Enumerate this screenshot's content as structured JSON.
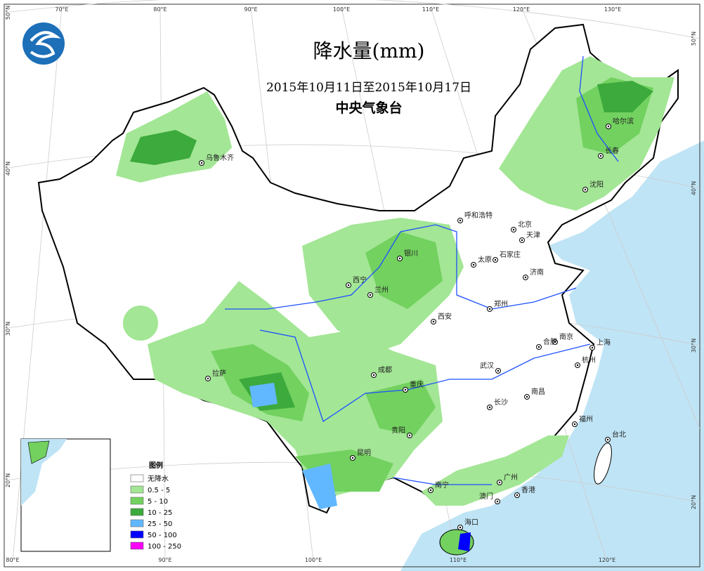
{
  "header": {
    "title": "降水量(mm)",
    "period": "2015年10月11日至2015年10月17日",
    "agency": "中央气象台"
  },
  "legend": {
    "title": "图例",
    "items": [
      {
        "label": "无降水",
        "color": "#ffffff"
      },
      {
        "label": "0.5 - 5",
        "color": "#a3e695"
      },
      {
        "label": "5 - 10",
        "color": "#72d15f"
      },
      {
        "label": "10 - 25",
        "color": "#3caa3c"
      },
      {
        "label": "25 - 50",
        "color": "#62b8ff"
      },
      {
        "label": "50 - 100",
        "color": "#0000fe"
      },
      {
        "label": "100 - 250",
        "color": "#fb00fb"
      }
    ]
  },
  "cities": [
    "乌鲁木齐",
    "哈尔滨",
    "长春",
    "沈阳",
    "呼和浩特",
    "北京",
    "天津",
    "银川",
    "太原",
    "石家庄",
    "济南",
    "西宁",
    "兰州",
    "郑州",
    "西安",
    "南京",
    "合肥",
    "上海",
    "杭州",
    "拉萨",
    "成都",
    "武汉",
    "重庆",
    "长沙",
    "南昌",
    "贵阳",
    "福州",
    "台北",
    "昆明",
    "南宁",
    "广州",
    "澳门",
    "香港",
    "海口"
  ],
  "graticule": {
    "top": [
      "70°E",
      "80°E",
      "90°E",
      "100°E",
      "110°E",
      "120°E",
      "130°E"
    ],
    "bottom": [
      "80°E",
      "90°E",
      "100°E",
      "110°E",
      "120°E"
    ],
    "left": [
      "50°N",
      "40°N",
      "30°N",
      "20°N"
    ],
    "right": [
      "50°N",
      "40°N",
      "30°N",
      "20°N"
    ]
  }
}
